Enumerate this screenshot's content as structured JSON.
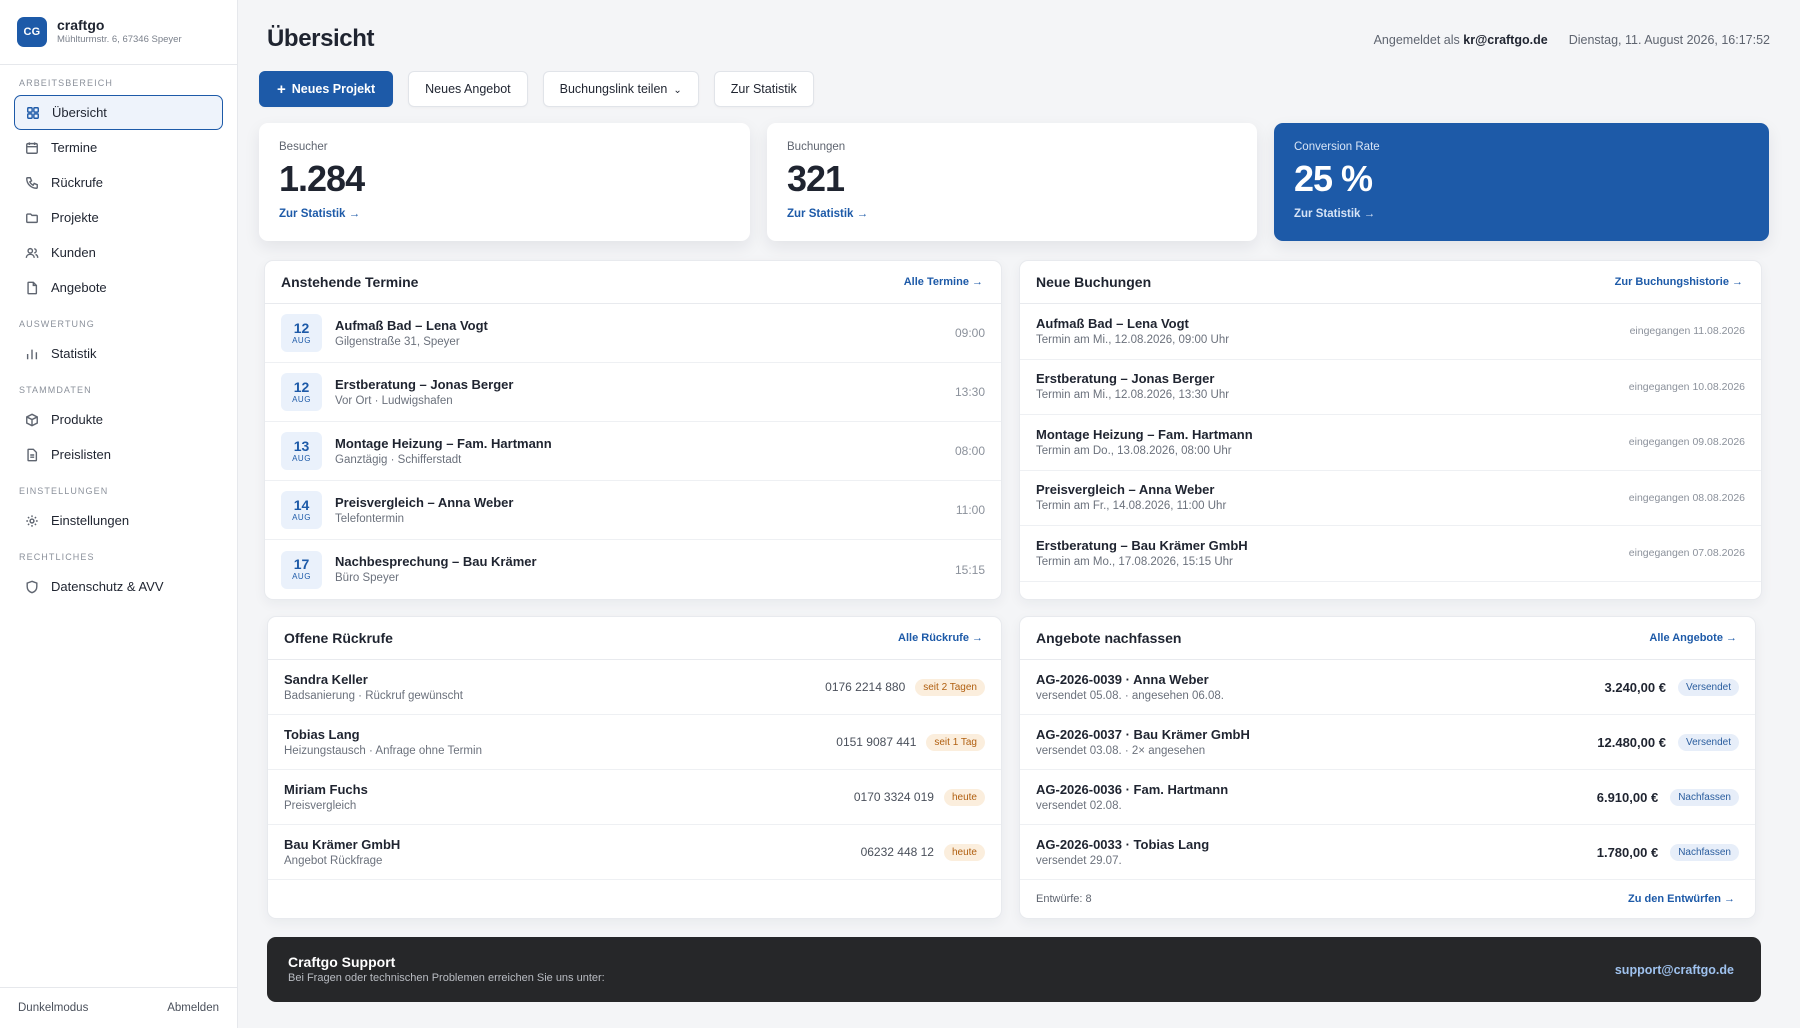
{
  "brand": {
    "logo": "CG",
    "name": "craftgo",
    "address": "Mühlturmstr. 6, 67346 Speyer"
  },
  "nav": {
    "sections": [
      {
        "title": "ARBEITSBEREICH",
        "items": [
          {
            "label": "Übersicht",
            "icon": "grid-icon",
            "active": true
          },
          {
            "label": "Termine",
            "icon": "calendar-icon"
          },
          {
            "label": "Rückrufe",
            "icon": "phone-icon"
          },
          {
            "label": "Projekte",
            "icon": "folder-icon"
          },
          {
            "label": "Kunden",
            "icon": "users-icon"
          },
          {
            "label": "Angebote",
            "icon": "document-icon"
          }
        ]
      },
      {
        "title": "AUSWERTUNG",
        "items": [
          {
            "label": "Statistik",
            "icon": "bar-chart-icon"
          }
        ]
      },
      {
        "title": "STAMMDATEN",
        "items": [
          {
            "label": "Produkte",
            "icon": "box-icon"
          },
          {
            "label": "Preislisten",
            "icon": "list-document-icon"
          }
        ]
      },
      {
        "title": "EINSTELLUNGEN",
        "items": [
          {
            "label": "Einstellungen",
            "icon": "gear-icon"
          }
        ]
      },
      {
        "title": "RECHTLICHES",
        "items": [
          {
            "label": "Datenschutz & AVV",
            "icon": "shield-icon"
          }
        ]
      }
    ],
    "footer": {
      "dark_mode": "Dunkelmodus",
      "logout": "Abmelden"
    }
  },
  "header": {
    "title": "Übersicht",
    "logged_in_prefix": "Angemeldet als",
    "user": "kr@craftgo.de",
    "datetime": "Dienstag, 11. August 2026, 16:17:52"
  },
  "actions": {
    "new_project": "Neues Projekt",
    "new_offer": "Neues Angebot",
    "share_link": "Buchungslink teilen",
    "statistics": "Zur Statistik"
  },
  "stats": [
    {
      "label": "Besucher",
      "value": "1.284",
      "link": "Zur Statistik →"
    },
    {
      "label": "Buchungen",
      "value": "321",
      "link": "Zur Statistik →"
    },
    {
      "label": "Conversion Rate",
      "value": "25 %",
      "link": "Zur Statistik →"
    }
  ],
  "appointments": {
    "title": "Anstehende Termine",
    "link": "Alle Termine →",
    "items": [
      {
        "day": "12",
        "month": "AUG",
        "title": "Aufmaß Bad – Lena Vogt",
        "sub": "Gilgenstraße 31, Speyer",
        "time": "09:00"
      },
      {
        "day": "12",
        "month": "AUG",
        "title": "Erstberatung – Jonas Berger",
        "sub": "Vor Ort · Ludwigshafen",
        "time": "13:30"
      },
      {
        "day": "13",
        "month": "AUG",
        "title": "Montage Heizung – Fam. Hartmann",
        "sub": "Ganztägig · Schifferstadt",
        "time": "08:00"
      },
      {
        "day": "14",
        "month": "AUG",
        "title": "Preisvergleich – Anna Weber",
        "sub": "Telefontermin",
        "time": "11:00"
      },
      {
        "day": "17",
        "month": "AUG",
        "title": "Nachbesprechung – Bau Krämer",
        "sub": "Büro Speyer",
        "time": "15:15"
      }
    ]
  },
  "bookings": {
    "title": "Neue Buchungen",
    "link": "Zur Buchungshistorie →",
    "items": [
      {
        "title": "Aufmaß Bad – Lena Vogt",
        "sub": "Termin am Mi., 12.08.2026, 09:00 Uhr",
        "received": "eingegangen 11.08.2026"
      },
      {
        "title": "Erstberatung – Jonas Berger",
        "sub": "Termin am Mi., 12.08.2026, 13:30 Uhr",
        "received": "eingegangen 10.08.2026"
      },
      {
        "title": "Montage Heizung – Fam. Hartmann",
        "sub": "Termin am Do., 13.08.2026, 08:00 Uhr",
        "received": "eingegangen 09.08.2026"
      },
      {
        "title": "Preisvergleich – Anna Weber",
        "sub": "Termin am Fr., 14.08.2026, 11:00 Uhr",
        "received": "eingegangen 08.08.2026"
      },
      {
        "title": "Erstberatung – Bau Krämer GmbH",
        "sub": "Termin am Mo., 17.08.2026, 15:15 Uhr",
        "received": "eingegangen 07.08.2026"
      }
    ]
  },
  "callbacks": {
    "title": "Offene Rückrufe",
    "link": "Alle Rückrufe →",
    "items": [
      {
        "name": "Sandra Keller",
        "sub": "Badsanierung · Rückruf gewünscht",
        "phone": "0176 2214 880",
        "badge": "seit 2 Tagen"
      },
      {
        "name": "Tobias Lang",
        "sub": "Heizungstausch · Anfrage ohne Termin",
        "phone": "0151 9087 441",
        "badge": "seit 1 Tag"
      },
      {
        "name": "Miriam Fuchs",
        "sub": "Preisvergleich",
        "phone": "0170 3324 019",
        "badge": "heute"
      },
      {
        "name": "Bau Krämer GmbH",
        "sub": "Angebot Rückfrage",
        "phone": "06232 448 12",
        "badge": "heute"
      }
    ]
  },
  "offers": {
    "title": "Angebote nachfassen",
    "link": "Alle Angebote →",
    "items": [
      {
        "title": "AG-2026-0039 · Anna Weber",
        "sub": "versendet 05.08. · angesehen 06.08.",
        "amount": "3.240,00 €",
        "badge": "Versendet"
      },
      {
        "title": "AG-2026-0037 · Bau Krämer GmbH",
        "sub": "versendet 03.08. · 2× angesehen",
        "amount": "12.480,00 €",
        "badge": "Versendet"
      },
      {
        "title": "AG-2026-0036 · Fam. Hartmann",
        "sub": "versendet 02.08.",
        "amount": "6.910,00 €",
        "badge": "Nachfassen"
      },
      {
        "title": "AG-2026-0033 · Tobias Lang",
        "sub": "versendet 29.07.",
        "amount": "1.780,00 €",
        "badge": "Nachfassen"
      }
    ],
    "drafts": "Entwürfe: 8",
    "drafts_link": "Zu den Entwürfen →"
  },
  "support": {
    "title": "Craftgo Support",
    "text": "Bei Fragen oder technischen Problemen erreichen Sie uns unter:",
    "email": "support@craftgo.de"
  },
  "colors": {
    "accent": "#1d5aa8",
    "support_bg": "#262729"
  }
}
